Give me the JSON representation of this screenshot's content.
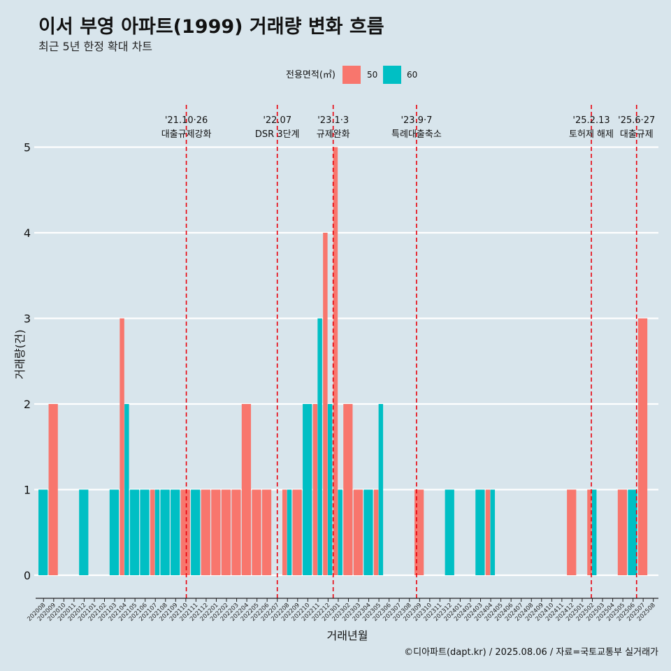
{
  "header": {
    "title": "이서 부영 아파트(1999) 거래량 변화 흐름",
    "subtitle": "최근 5년 한정 확대 차트"
  },
  "caption": "©디아파트(dapt.kr) / 2025.08.06 / 자료=국토교통부 실거래가",
  "colors": {
    "s50": "#f8766d",
    "s60": "#00bfc4",
    "background": "#d8e5ec",
    "event_line": "#e8000b"
  },
  "chart_data": {
    "type": "bar",
    "xlabel": "거래년월",
    "ylabel": "거래량(건)",
    "ylim": [
      0,
      5
    ],
    "yticks": [
      0,
      1,
      2,
      3,
      4,
      5
    ],
    "grid": true,
    "legend": {
      "title": "전용면적(㎡)",
      "position": "top"
    },
    "categories": [
      "202008",
      "202009",
      "202010",
      "202011",
      "202012",
      "202101",
      "202102",
      "202103",
      "202104",
      "202105",
      "202106",
      "202107",
      "202108",
      "202109",
      "202110",
      "202111",
      "202112",
      "202201",
      "202202",
      "202203",
      "202204",
      "202205",
      "202206",
      "202207",
      "202208",
      "202209",
      "202210",
      "202211",
      "202212",
      "202301",
      "202302",
      "202303",
      "202304",
      "202305",
      "202306",
      "202307",
      "202308",
      "202309",
      "202310",
      "202311",
      "202312",
      "202401",
      "202402",
      "202403",
      "202404",
      "202405",
      "202406",
      "202407",
      "202408",
      "202409",
      "202410",
      "202411",
      "202412",
      "202501",
      "202502",
      "202503",
      "202504",
      "202505",
      "202506",
      "202507",
      "202508"
    ],
    "series": [
      {
        "name": "50",
        "values": [
          0,
          2,
          0,
          0,
          0,
          0,
          0,
          0,
          3,
          0,
          0,
          1,
          0,
          0,
          1,
          0,
          1,
          1,
          1,
          1,
          2,
          1,
          1,
          0,
          1,
          1,
          0,
          2,
          4,
          5,
          2,
          1,
          0,
          1,
          0,
          0,
          0,
          1,
          0,
          0,
          0,
          0,
          0,
          0,
          1,
          0,
          0,
          0,
          0,
          0,
          0,
          0,
          1,
          0,
          1,
          0,
          0,
          1,
          0,
          3,
          0
        ]
      },
      {
        "name": "60",
        "values": [
          1,
          0,
          0,
          0,
          1,
          0,
          0,
          1,
          2,
          1,
          1,
          1,
          1,
          1,
          0,
          1,
          0,
          0,
          0,
          0,
          0,
          0,
          0,
          0,
          1,
          0,
          2,
          3,
          2,
          1,
          0,
          0,
          1,
          2,
          0,
          0,
          0,
          0,
          0,
          0,
          1,
          0,
          0,
          1,
          1,
          0,
          0,
          0,
          0,
          0,
          0,
          0,
          0,
          0,
          1,
          0,
          0,
          0,
          1,
          0,
          0
        ]
      }
    ],
    "events": [
      {
        "date": "'21.10·26",
        "label": "대출규제강화",
        "month": "202110",
        "offset": 0.55
      },
      {
        "date": "'22.07",
        "label": "DSR 3단계",
        "month": "202207",
        "offset": 0.5
      },
      {
        "date": "'23.1·3",
        "label": "규제완화",
        "month": "202301",
        "offset": 0.0
      },
      {
        "date": "'23.9·7",
        "label": "특례대출축소",
        "month": "202309",
        "offset": 0.2
      },
      {
        "date": "'25.2.13",
        "label": "토허제 해제",
        "month": "202502",
        "offset": 0.4
      },
      {
        "date": "'25.6·27",
        "label": "대출규제",
        "month": "202506",
        "offset": 0.85
      }
    ]
  }
}
